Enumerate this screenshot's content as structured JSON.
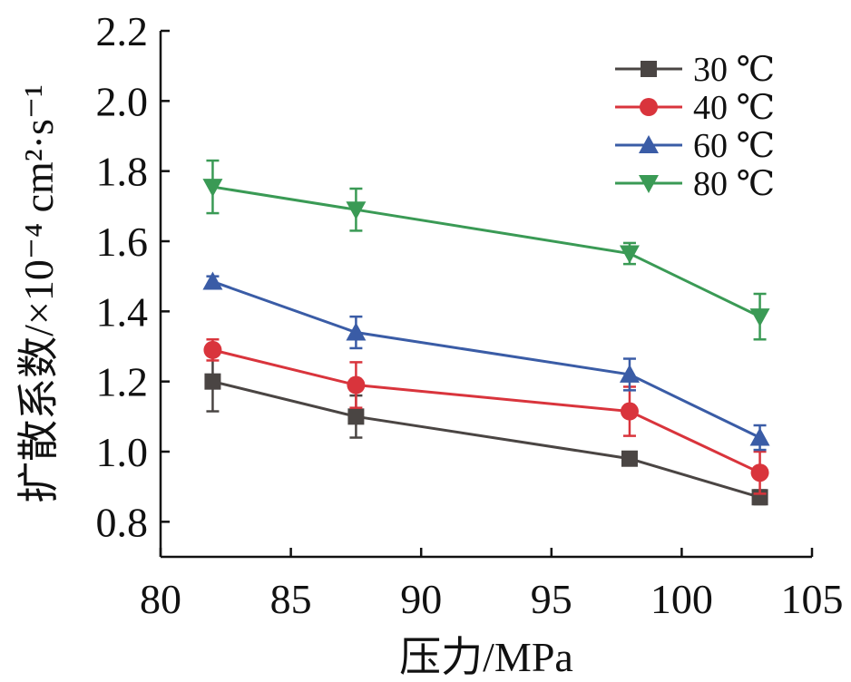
{
  "chart_data": {
    "type": "line",
    "title": "",
    "xlabel": "压力/MPa",
    "ylabel": "扩散系数/×10⁻⁴ cm²·s⁻¹",
    "xlim": [
      80,
      105
    ],
    "ylim": [
      0.7,
      2.2
    ],
    "xticks": [
      80,
      85,
      90,
      95,
      100,
      105
    ],
    "yticks": [
      0.8,
      1.0,
      1.2,
      1.4,
      1.6,
      1.8,
      2.0,
      2.2
    ],
    "xtick_labels": [
      "80",
      "85",
      "90",
      "95",
      "100",
      "105"
    ],
    "ytick_labels": [
      "0.8",
      "1.0",
      "1.2",
      "1.4",
      "1.6",
      "1.8",
      "2.0",
      "2.2"
    ],
    "x": [
      82,
      87.5,
      98,
      103
    ],
    "legend_position": "top-right",
    "grid": false,
    "series": [
      {
        "name": "30 ℃",
        "marker": "square",
        "color": "#4a4543",
        "values": [
          1.2,
          1.1,
          0.98,
          0.87
        ],
        "errors": [
          0.085,
          0.06,
          0.01,
          0.02
        ]
      },
      {
        "name": "40 ℃",
        "marker": "circle",
        "color": "#d9343c",
        "values": [
          1.29,
          1.19,
          1.115,
          0.94
        ],
        "errors": [
          0.03,
          0.065,
          0.07,
          0.06
        ]
      },
      {
        "name": "60 ℃",
        "marker": "triangle-up",
        "color": "#3a5ca6",
        "values": [
          1.485,
          1.34,
          1.22,
          1.04
        ],
        "errors": [
          0.015,
          0.045,
          0.045,
          0.035
        ]
      },
      {
        "name": "80 ℃",
        "marker": "triangle-down",
        "color": "#3a9a55",
        "values": [
          1.755,
          1.69,
          1.565,
          1.385
        ],
        "errors": [
          0.075,
          0.06,
          0.03,
          0.065
        ]
      }
    ]
  }
}
